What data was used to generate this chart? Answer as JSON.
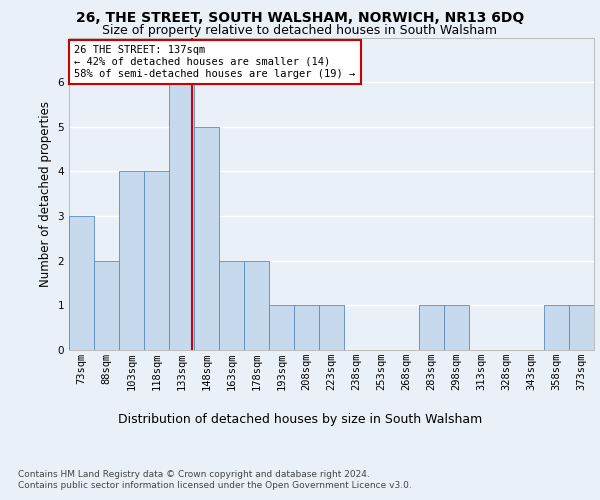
{
  "title1": "26, THE STREET, SOUTH WALSHAM, NORWICH, NR13 6DQ",
  "title2": "Size of property relative to detached houses in South Walsham",
  "xlabel": "Distribution of detached houses by size in South Walsham",
  "ylabel": "Number of detached properties",
  "categories": [
    "73sqm",
    "88sqm",
    "103sqm",
    "118sqm",
    "133sqm",
    "148sqm",
    "163sqm",
    "178sqm",
    "193sqm",
    "208sqm",
    "223sqm",
    "238sqm",
    "253sqm",
    "268sqm",
    "283sqm",
    "298sqm",
    "313sqm",
    "328sqm",
    "343sqm",
    "358sqm",
    "373sqm"
  ],
  "values": [
    3,
    2,
    4,
    4,
    6,
    5,
    2,
    2,
    1,
    1,
    1,
    0,
    0,
    0,
    1,
    1,
    0,
    0,
    0,
    1,
    1
  ],
  "bar_color": "#c7d9ed",
  "bar_edge_color": "#5a8bbf",
  "red_line_index": 4.42,
  "annotation_text": "26 THE STREET: 137sqm\n← 42% of detached houses are smaller (14)\n58% of semi-detached houses are larger (19) →",
  "annotation_box_color": "#ffffff",
  "annotation_box_edge": "#cc0000",
  "footer1": "Contains HM Land Registry data © Crown copyright and database right 2024.",
  "footer2": "Contains public sector information licensed under the Open Government Licence v3.0.",
  "ylim": [
    0,
    7
  ],
  "yticks": [
    0,
    1,
    2,
    3,
    4,
    5,
    6
  ],
  "bg_color": "#eaf0f8",
  "plot_bg_color": "#eaf0f8",
  "grid_color": "#ffffff",
  "title1_fontsize": 10,
  "title2_fontsize": 9,
  "tick_fontsize": 7.5,
  "ylabel_fontsize": 8.5,
  "xlabel_fontsize": 9
}
